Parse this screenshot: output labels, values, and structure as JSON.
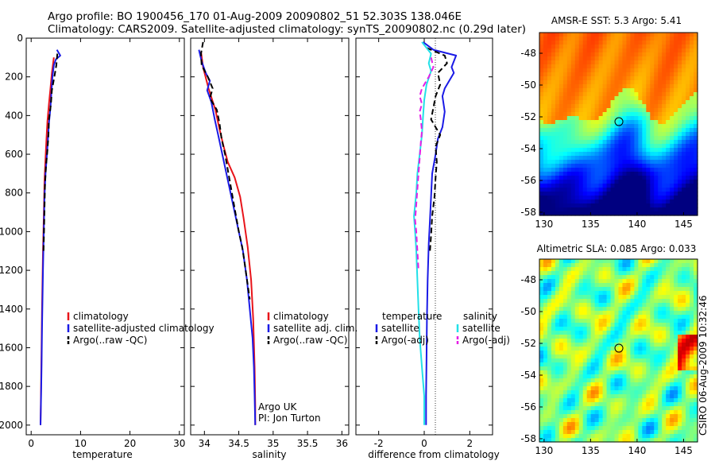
{
  "header": {
    "line1": "Argo profile: BO 1900456_170 01-Aug-2009 20090802_51 52.303S 138.046E",
    "line2": "Climatology: CARS2009. Satellite-adjusted climatology: synTS_20090802.nc (0.29d later)"
  },
  "side_note": "CSIRO 06-Aug-2009 10:32:46",
  "colors": {
    "climatology": "#e8141a",
    "satellite": "#1a1ae6",
    "argo": "#000000",
    "salinity_satellite": "#22e0e8",
    "salinity_argo": "#e61ee6"
  },
  "chart_data": [
    {
      "type": "line",
      "xlabel": "temperature",
      "xlim": [
        -1,
        31
      ],
      "ylim": [
        0,
        2050
      ],
      "xticks": [
        0,
        10,
        20,
        30
      ],
      "yticks": [
        0,
        200,
        400,
        600,
        800,
        1000,
        1200,
        1400,
        1600,
        1800,
        2000
      ],
      "legend": [
        "climatology",
        "satellite-adjusted climatology",
        "Argo(..raw -QC)"
      ],
      "series": [
        {
          "name": "climatology",
          "color": "#e8141a",
          "style": "solid",
          "points": [
            [
              4.6,
              100
            ],
            [
              4.2,
              180
            ],
            [
              3.9,
              260
            ],
            [
              3.6,
              340
            ],
            [
              3.3,
              430
            ],
            [
              3.1,
              520
            ],
            [
              2.9,
              620
            ],
            [
              2.7,
              740
            ],
            [
              2.6,
              860
            ],
            [
              2.5,
              980
            ],
            [
              2.4,
              1100
            ],
            [
              2.3,
              1250
            ],
            [
              2.2,
              1400
            ],
            [
              2.1,
              1600
            ],
            [
              2.0,
              1800
            ],
            [
              1.9,
              2000
            ]
          ]
        },
        {
          "name": "satellite-adjusted climatology",
          "color": "#1a1ae6",
          "style": "solid",
          "points": [
            [
              5.2,
              60
            ],
            [
              5.9,
              90
            ],
            [
              5.0,
              110
            ],
            [
              4.6,
              140
            ],
            [
              4.3,
              200
            ],
            [
              4.1,
              280
            ],
            [
              3.9,
              360
            ],
            [
              3.6,
              440
            ],
            [
              3.4,
              520
            ],
            [
              3.2,
              600
            ],
            [
              2.9,
              700
            ],
            [
              2.7,
              820
            ],
            [
              2.6,
              940
            ],
            [
              2.5,
              1060
            ],
            [
              2.4,
              1200
            ],
            [
              2.3,
              1350
            ],
            [
              2.2,
              1500
            ],
            [
              2.1,
              1700
            ],
            [
              2.0,
              1850
            ],
            [
              1.9,
              2000
            ]
          ]
        },
        {
          "name": "Argo(..raw -QC)",
          "color": "#000000",
          "style": "dashed",
          "points": [
            [
              5.3,
              80
            ],
            [
              5.1,
              140
            ],
            [
              4.7,
              200
            ],
            [
              4.2,
              270
            ],
            [
              4.0,
              340
            ],
            [
              3.6,
              420
            ],
            [
              3.5,
              500
            ],
            [
              3.3,
              580
            ],
            [
              3.0,
              660
            ],
            [
              2.8,
              760
            ],
            [
              2.7,
              880
            ],
            [
              2.6,
              1000
            ],
            [
              2.5,
              1100
            ]
          ]
        }
      ]
    },
    {
      "type": "line",
      "xlabel": "salinity",
      "xlim": [
        33.8,
        36.1
      ],
      "ylim": [
        0,
        2050
      ],
      "xticks": [
        34,
        34.5,
        35,
        35.5,
        36
      ],
      "legend": [
        "climatology",
        "satellite adj. clim.",
        "Argo(..raw -QC)"
      ],
      "annotation": [
        "Argo UK",
        "PI: Jon Turton"
      ],
      "series": [
        {
          "name": "climatology",
          "color": "#e8141a",
          "style": "solid",
          "points": [
            [
              33.95,
              70
            ],
            [
              33.98,
              150
            ],
            [
              34.06,
              260
            ],
            [
              34.16,
              370
            ],
            [
              34.22,
              470
            ],
            [
              34.28,
              560
            ],
            [
              34.34,
              640
            ],
            [
              34.44,
              720
            ],
            [
              34.52,
              820
            ],
            [
              34.57,
              930
            ],
            [
              34.63,
              1080
            ],
            [
              34.68,
              1250
            ],
            [
              34.71,
              1450
            ],
            [
              34.73,
              1700
            ],
            [
              34.74,
              1900
            ],
            [
              34.74,
              2000
            ]
          ]
        },
        {
          "name": "satellite adj. clim.",
          "color": "#1a1ae6",
          "style": "solid",
          "points": [
            [
              33.92,
              60
            ],
            [
              33.96,
              120
            ],
            [
              34.02,
              180
            ],
            [
              34.08,
              220
            ],
            [
              34.04,
              270
            ],
            [
              34.1,
              330
            ],
            [
              34.15,
              420
            ],
            [
              34.2,
              500
            ],
            [
              34.26,
              600
            ],
            [
              34.32,
              700
            ],
            [
              34.38,
              800
            ],
            [
              34.44,
              900
            ],
            [
              34.5,
              1000
            ],
            [
              34.56,
              1100
            ],
            [
              34.62,
              1250
            ],
            [
              34.66,
              1400
            ],
            [
              34.7,
              1550
            ],
            [
              34.72,
              1700
            ],
            [
              34.73,
              1850
            ],
            [
              34.74,
              2000
            ]
          ]
        },
        {
          "name": "Argo(..raw -QC)",
          "color": "#000000",
          "style": "dashed",
          "points": [
            [
              33.98,
              20
            ],
            [
              33.95,
              80
            ],
            [
              33.96,
              140
            ],
            [
              34.05,
              200
            ],
            [
              34.12,
              260
            ],
            [
              34.08,
              310
            ],
            [
              34.18,
              370
            ],
            [
              34.22,
              440
            ],
            [
              34.25,
              520
            ],
            [
              34.3,
              600
            ],
            [
              34.34,
              680
            ],
            [
              34.38,
              760
            ],
            [
              34.42,
              840
            ],
            [
              34.46,
              920
            ],
            [
              34.5,
              1000
            ],
            [
              34.55,
              1080
            ],
            [
              34.58,
              1150
            ],
            [
              34.62,
              1250
            ],
            [
              34.66,
              1350
            ]
          ]
        }
      ]
    },
    {
      "type": "line",
      "xlabel": "difference from climatology",
      "xlim": [
        -3,
        3
      ],
      "ylim": [
        0,
        2050
      ],
      "xticks": [
        -2,
        0,
        2
      ],
      "legend": [
        "temperature",
        "satellite",
        "Argo(-adj)",
        "salinity",
        "satellite",
        "Argo(-adj)"
      ],
      "series": [
        {
          "name": "satellite",
          "color": "#1a1ae6",
          "style": "solid",
          "points": [
            [
              -0.05,
              20
            ],
            [
              0.4,
              60
            ],
            [
              1.4,
              90
            ],
            [
              1.2,
              150
            ],
            [
              1.3,
              180
            ],
            [
              0.9,
              260
            ],
            [
              0.8,
              300
            ],
            [
              0.9,
              380
            ],
            [
              0.8,
              460
            ],
            [
              0.6,
              520
            ],
            [
              0.5,
              600
            ],
            [
              0.35,
              700
            ],
            [
              0.3,
              820
            ],
            [
              0.25,
              940
            ],
            [
              0.2,
              1060
            ],
            [
              0.15,
              1250
            ],
            [
              0.12,
              1450
            ],
            [
              0.1,
              1650
            ],
            [
              0.08,
              1850
            ],
            [
              0.08,
              2000
            ]
          ]
        },
        {
          "name": "Argo(-adj)",
          "color": "#000000",
          "style": "dashed",
          "points": [
            [
              0.1,
              50
            ],
            [
              0.9,
              90
            ],
            [
              1.0,
              130
            ],
            [
              0.6,
              180
            ],
            [
              0.7,
              240
            ],
            [
              0.5,
              300
            ],
            [
              0.4,
              360
            ],
            [
              0.3,
              420
            ],
            [
              0.5,
              460
            ],
            [
              0.7,
              500
            ],
            [
              0.5,
              560
            ],
            [
              0.55,
              640
            ],
            [
              0.5,
              720
            ],
            [
              0.45,
              820
            ],
            [
              0.35,
              920
            ],
            [
              0.3,
              1020
            ],
            [
              0.25,
              1100
            ]
          ]
        },
        {
          "name": "satellite",
          "color": "#22e0e8",
          "style": "solid",
          "points": [
            [
              -0.1,
              20
            ],
            [
              0.3,
              80
            ],
            [
              0.2,
              130
            ],
            [
              0.3,
              170
            ],
            [
              0.1,
              240
            ],
            [
              0.0,
              320
            ],
            [
              -0.05,
              400
            ],
            [
              -0.1,
              500
            ],
            [
              -0.2,
              600
            ],
            [
              -0.3,
              700
            ],
            [
              -0.35,
              800
            ],
            [
              -0.45,
              920
            ],
            [
              -0.4,
              1000
            ],
            [
              -0.35,
              1100
            ],
            [
              -0.3,
              1250
            ],
            [
              -0.25,
              1400
            ],
            [
              -0.2,
              1550
            ],
            [
              -0.1,
              1700
            ],
            [
              0.0,
              1850
            ],
            [
              0.0,
              2000
            ]
          ]
        },
        {
          "name": "Argo(-adj)",
          "color": "#e61ee6",
          "style": "dashed",
          "points": [
            [
              0.3,
              100
            ],
            [
              0.4,
              150
            ],
            [
              0.2,
              200
            ],
            [
              -0.1,
              260
            ],
            [
              -0.2,
              300
            ],
            [
              -0.1,
              340
            ],
            [
              -0.2,
              380
            ],
            [
              -0.15,
              420
            ],
            [
              -0.1,
              480
            ],
            [
              -0.15,
              540
            ],
            [
              -0.2,
              620
            ],
            [
              -0.25,
              700
            ],
            [
              -0.3,
              780
            ],
            [
              -0.35,
              860
            ],
            [
              -0.4,
              940
            ],
            [
              -0.35,
              1000
            ],
            [
              -0.3,
              1100
            ],
            [
              -0.25,
              1200
            ]
          ]
        }
      ]
    },
    {
      "type": "heatmap",
      "title": "AMSR-E SST: 5.3 Argo: 5.41",
      "xlim": [
        129.5,
        146.5
      ],
      "ylim": [
        -58.2,
        -46.7
      ],
      "xticks": [
        130,
        135,
        140,
        145
      ],
      "yticks": [
        -48,
        -50,
        -52,
        -54,
        -56,
        -58
      ],
      "marker": [
        138.046,
        -52.303
      ]
    },
    {
      "type": "heatmap",
      "title": "Altimetric SLA: 0.085 Argo: 0.033",
      "xlim": [
        129.5,
        146.5
      ],
      "ylim": [
        -58.2,
        -46.7
      ],
      "xticks": [
        130,
        135,
        140,
        145
      ],
      "yticks": [
        -48,
        -50,
        -52,
        -54,
        -56,
        -58
      ],
      "marker": [
        138.046,
        -52.303
      ]
    }
  ]
}
